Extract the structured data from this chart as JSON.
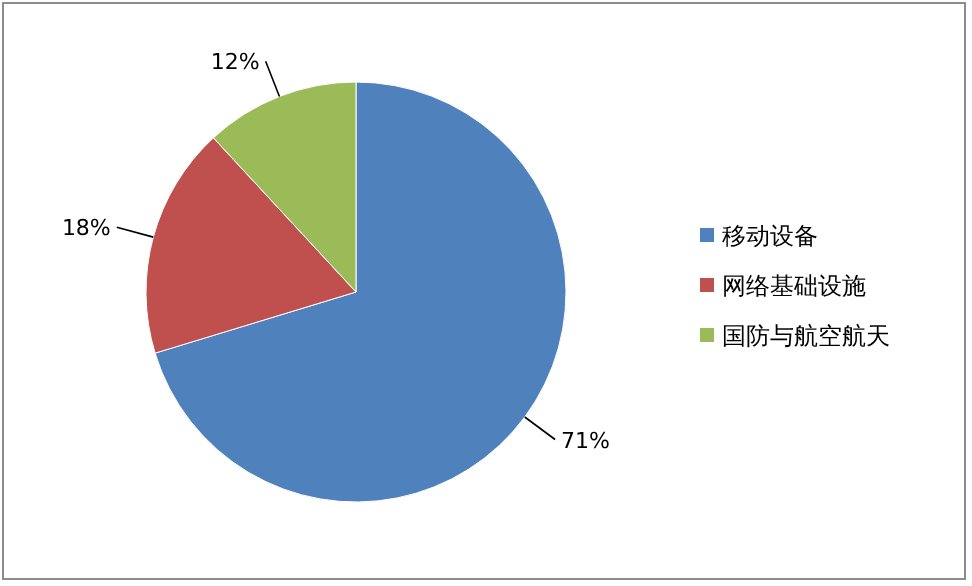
{
  "chart_data": {
    "type": "pie",
    "categories": [
      "移动设备",
      "网络基础设施",
      "国防与航空航天"
    ],
    "values": [
      71,
      18,
      12
    ],
    "colors": [
      "#4f81bd",
      "#c0504d",
      "#9bbb59"
    ],
    "value_labels": [
      "71%",
      "18%",
      "12%"
    ],
    "legend": "right"
  }
}
